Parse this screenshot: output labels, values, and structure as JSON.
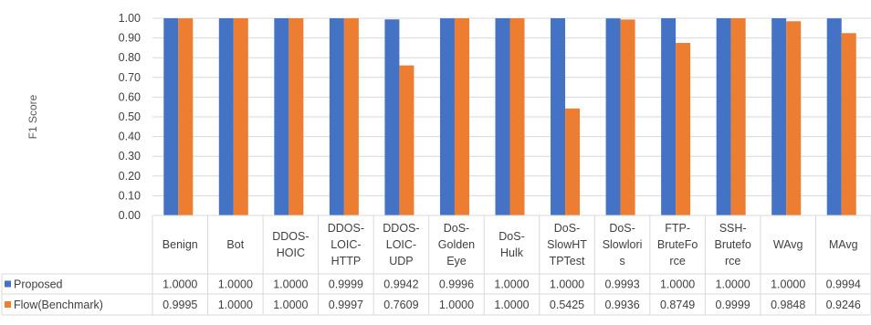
{
  "chart_data": {
    "type": "bar",
    "title": "",
    "xlabel": "",
    "ylabel": "F1 Score",
    "ylim": [
      0,
      1
    ],
    "ytick_step": 0.1,
    "grid": true,
    "legend_placement": "inline with data table rows",
    "categories": [
      "Benign",
      "Bot",
      "DDOS-\nHOIC",
      "DDOS-\nLOIC-\nHTTP",
      "DDOS-\nLOIC-\nUDP",
      "DoS-\nGolden\nEye",
      "DoS-\nHulk",
      "DoS-\nSlowHT\nTPTest",
      "DoS-\nSlowlori\ns",
      "FTP-\nBruteFo\nrce",
      "SSH-\nBrutefo\nrce",
      "WAvg",
      "MAvg"
    ],
    "series": [
      {
        "name": "Proposed",
        "color": "#4472C4",
        "values": [
          1.0,
          1.0,
          1.0,
          0.9999,
          0.9942,
          0.9996,
          1.0,
          1.0,
          0.9993,
          1.0,
          1.0,
          1.0,
          0.9994
        ],
        "labels": [
          "1.0000",
          "1.0000",
          "1.0000",
          "0.9999",
          "0.9942",
          "0.9996",
          "1.0000",
          "1.0000",
          "0.9993",
          "1.0000",
          "1.0000",
          "1.0000",
          "0.9994"
        ]
      },
      {
        "name": "Flow(Benchmark)",
        "color": "#ED7D31",
        "values": [
          0.9995,
          1.0,
          1.0,
          0.9997,
          0.7609,
          1.0,
          1.0,
          0.5425,
          0.9936,
          0.8749,
          0.9999,
          0.9848,
          0.9246
        ],
        "labels": [
          "0.9995",
          "1.0000",
          "1.0000",
          "0.9997",
          "0.7609",
          "1.0000",
          "1.0000",
          "0.5425",
          "0.9936",
          "0.8749",
          "0.9999",
          "0.9848",
          "0.9246"
        ]
      }
    ]
  }
}
